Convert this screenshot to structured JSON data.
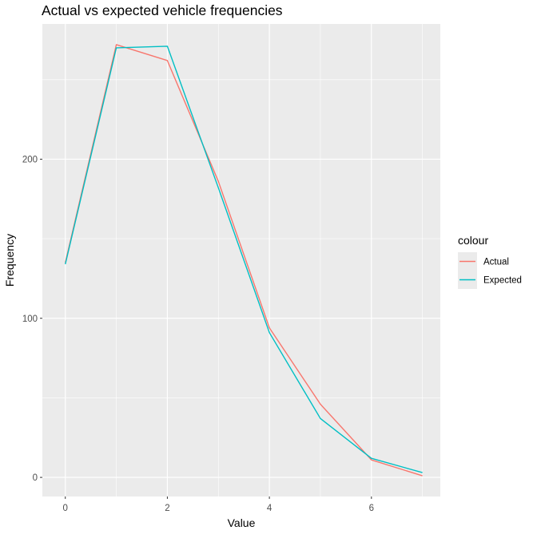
{
  "chart_data": {
    "type": "line",
    "title": "Actual vs expected vehicle frequencies",
    "xlabel": "Value",
    "ylabel": "Frequency",
    "xlim": [
      -0.45,
      7.35
    ],
    "ylim": [
      -12,
      285
    ],
    "x_ticks": [
      0,
      2,
      4,
      6
    ],
    "x_tick_labels": [
      "0",
      "2",
      "4",
      "6"
    ],
    "x_minor_ticks": [
      1,
      3,
      5,
      7
    ],
    "y_ticks": [
      0,
      100,
      200
    ],
    "y_tick_labels": [
      "0",
      "100",
      "200"
    ],
    "y_minor_ticks": [
      50,
      150,
      250
    ],
    "grid": true,
    "legend": {
      "title": "colour",
      "position": "right",
      "entries": [
        "Actual",
        "Expected"
      ]
    },
    "x": [
      0,
      1,
      2,
      3,
      4,
      5,
      6,
      7
    ],
    "series": [
      {
        "name": "Actual",
        "color": "#F8766D",
        "values": [
          135,
          272,
          262,
          186,
          94,
          46,
          11,
          1
        ]
      },
      {
        "name": "Expected",
        "color": "#00BFC4",
        "values": [
          134,
          270,
          271,
          182,
          91,
          37,
          12,
          3
        ]
      }
    ]
  }
}
